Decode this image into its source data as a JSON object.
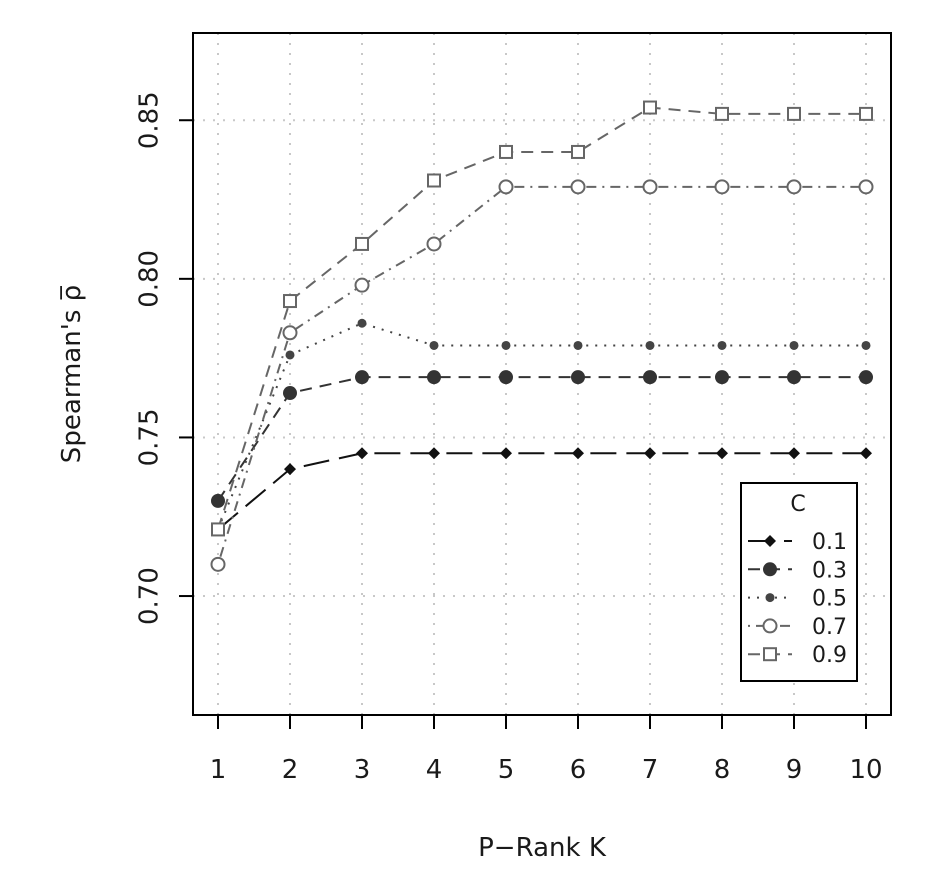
{
  "chart_data": {
    "type": "line",
    "title": "",
    "xlabel": "P−Rank K",
    "ylabel": "Spearman's ρ̅",
    "x": [
      1,
      2,
      3,
      4,
      5,
      6,
      7,
      8,
      9,
      10
    ],
    "xlim": [
      1,
      10
    ],
    "ylim": [
      0.6625,
      0.8775
    ],
    "yticks": [
      0.7,
      0.75,
      0.8,
      0.85
    ],
    "grid": true,
    "legend": {
      "title": "C",
      "position": "bottom-right"
    },
    "series": [
      {
        "name": "0.1",
        "marker": "diamond-filled",
        "line": "longdash",
        "color": "#111111",
        "values": [
          0.721,
          0.74,
          0.745,
          0.745,
          0.745,
          0.745,
          0.745,
          0.745,
          0.745,
          0.745
        ]
      },
      {
        "name": "0.3",
        "marker": "circle-filled-large",
        "line": "dashed",
        "color": "#333333",
        "values": [
          0.73,
          0.764,
          0.769,
          0.769,
          0.769,
          0.769,
          0.769,
          0.769,
          0.769,
          0.769
        ]
      },
      {
        "name": "0.5",
        "marker": "circle-filled-small",
        "line": "dotted",
        "color": "#444444",
        "values": [
          0.721,
          0.776,
          0.786,
          0.779,
          0.779,
          0.779,
          0.779,
          0.779,
          0.779,
          0.779
        ]
      },
      {
        "name": "0.7",
        "marker": "circle-open",
        "line": "dotdash",
        "color": "#666666",
        "values": [
          0.71,
          0.783,
          0.798,
          0.811,
          0.829,
          0.829,
          0.829,
          0.829,
          0.829,
          0.829
        ]
      },
      {
        "name": "0.9",
        "marker": "square-open",
        "line": "dashed",
        "color": "#666666",
        "values": [
          0.721,
          0.793,
          0.811,
          0.831,
          0.84,
          0.84,
          0.854,
          0.852,
          0.852,
          0.852
        ]
      }
    ]
  }
}
